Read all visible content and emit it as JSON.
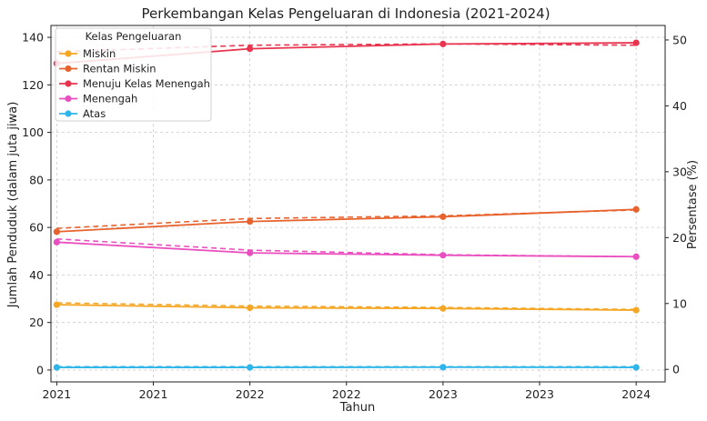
{
  "chart_data": {
    "type": "line",
    "title": "Perkembangan Kelas Pengeluaran di Indonesia (2021-2024)",
    "xlabel": "Tahun",
    "ylabel": "Jumlah Penduduk (dalam juta jiwa)",
    "y2label": "Persentase (%)",
    "x": [
      2021,
      2022,
      2023,
      2024
    ],
    "xticks": [
      "2021",
      "2021",
      "2022",
      "2022",
      "2023",
      "2023",
      "2024"
    ],
    "xlim": [
      2020.97,
      2024.15
    ],
    "ylim": [
      -5,
      145
    ],
    "yticks": [
      0,
      20,
      40,
      60,
      80,
      100,
      120,
      140
    ],
    "y2lim": [
      -1.9,
      52.2
    ],
    "y2ticks": [
      0,
      10,
      20,
      30,
      40,
      50
    ],
    "grid": true,
    "legend": {
      "title": "Kelas Pengeluaran",
      "position": "top-left"
    },
    "series": [
      {
        "name": "Miskin",
        "color": "#f5a623",
        "values": [
          27.5,
          26.2,
          25.9,
          25.2
        ],
        "percent": [
          10.1,
          9.6,
          9.4,
          9.1
        ]
      },
      {
        "name": "Rentan Miskin",
        "color": "#e8622d",
        "values": [
          58.2,
          62.5,
          64.5,
          67.6
        ],
        "percent": [
          21.4,
          22.9,
          23.3,
          24.2
        ]
      },
      {
        "name": "Menuju Kelas Menengah",
        "color": "#e8344e",
        "values": [
          129.0,
          135.2,
          137.2,
          137.7
        ],
        "percent": [
          48.2,
          49.2,
          49.4,
          49.2
        ]
      },
      {
        "name": "Menengah",
        "color": "#ea4fbf",
        "values": [
          53.8,
          49.3,
          48.3,
          47.7
        ],
        "percent": [
          19.8,
          18.1,
          17.4,
          17.1
        ]
      },
      {
        "name": "Atas",
        "color": "#2eb6ea",
        "values": [
          1.1,
          1.1,
          1.2,
          1.1
        ],
        "percent": [
          0.4,
          0.4,
          0.4,
          0.4
        ]
      }
    ]
  }
}
